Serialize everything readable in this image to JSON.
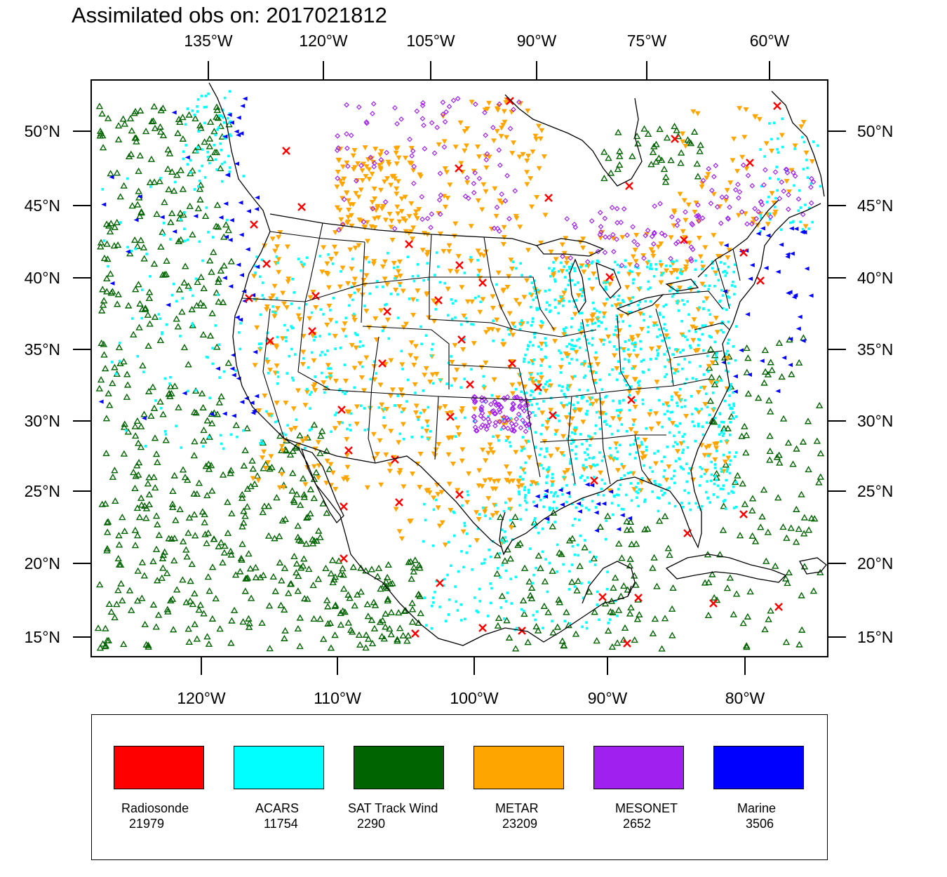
{
  "title": "Assimilated obs on: 2017021812",
  "axes": {
    "top_lon_labels": [
      "135°W",
      "120°W",
      "105°W",
      "90°W",
      "75°W",
      "60°W"
    ],
    "bottom_lon_labels": [
      "120°W",
      "110°W",
      "100°W",
      "90°W",
      "80°W"
    ],
    "lat_labels": [
      "50°N",
      "45°N",
      "40°N",
      "35°N",
      "30°N",
      "25°N",
      "20°N",
      "15°N"
    ]
  },
  "legend": [
    {
      "label": "Radiosonde",
      "count": "21979",
      "color": "#ff0000",
      "marker": "x"
    },
    {
      "label": "ACARS",
      "count": "11754",
      "color": "#00ffff",
      "marker": "dot"
    },
    {
      "label": "SAT Track Wind",
      "count": "2290",
      "color": "#006400",
      "marker": "triangle-up"
    },
    {
      "label": "METAR",
      "count": "23209",
      "color": "#ffa500",
      "marker": "triangle-down"
    },
    {
      "label": "MESONET",
      "count": "2652",
      "color": "#a020f0",
      "marker": "diamond"
    },
    {
      "label": "Marine",
      "count": "3506",
      "color": "#0000ff",
      "marker": "triangle-left"
    }
  ],
  "map": {
    "projection": "Lambert conformal (CONUS)",
    "lon_range": [
      "128°W",
      "58°W"
    ],
    "lat_range": [
      "14°N",
      "53°N"
    ],
    "map_outlines": [
      "coastlines",
      "US state boundaries",
      "country borders"
    ]
  }
}
